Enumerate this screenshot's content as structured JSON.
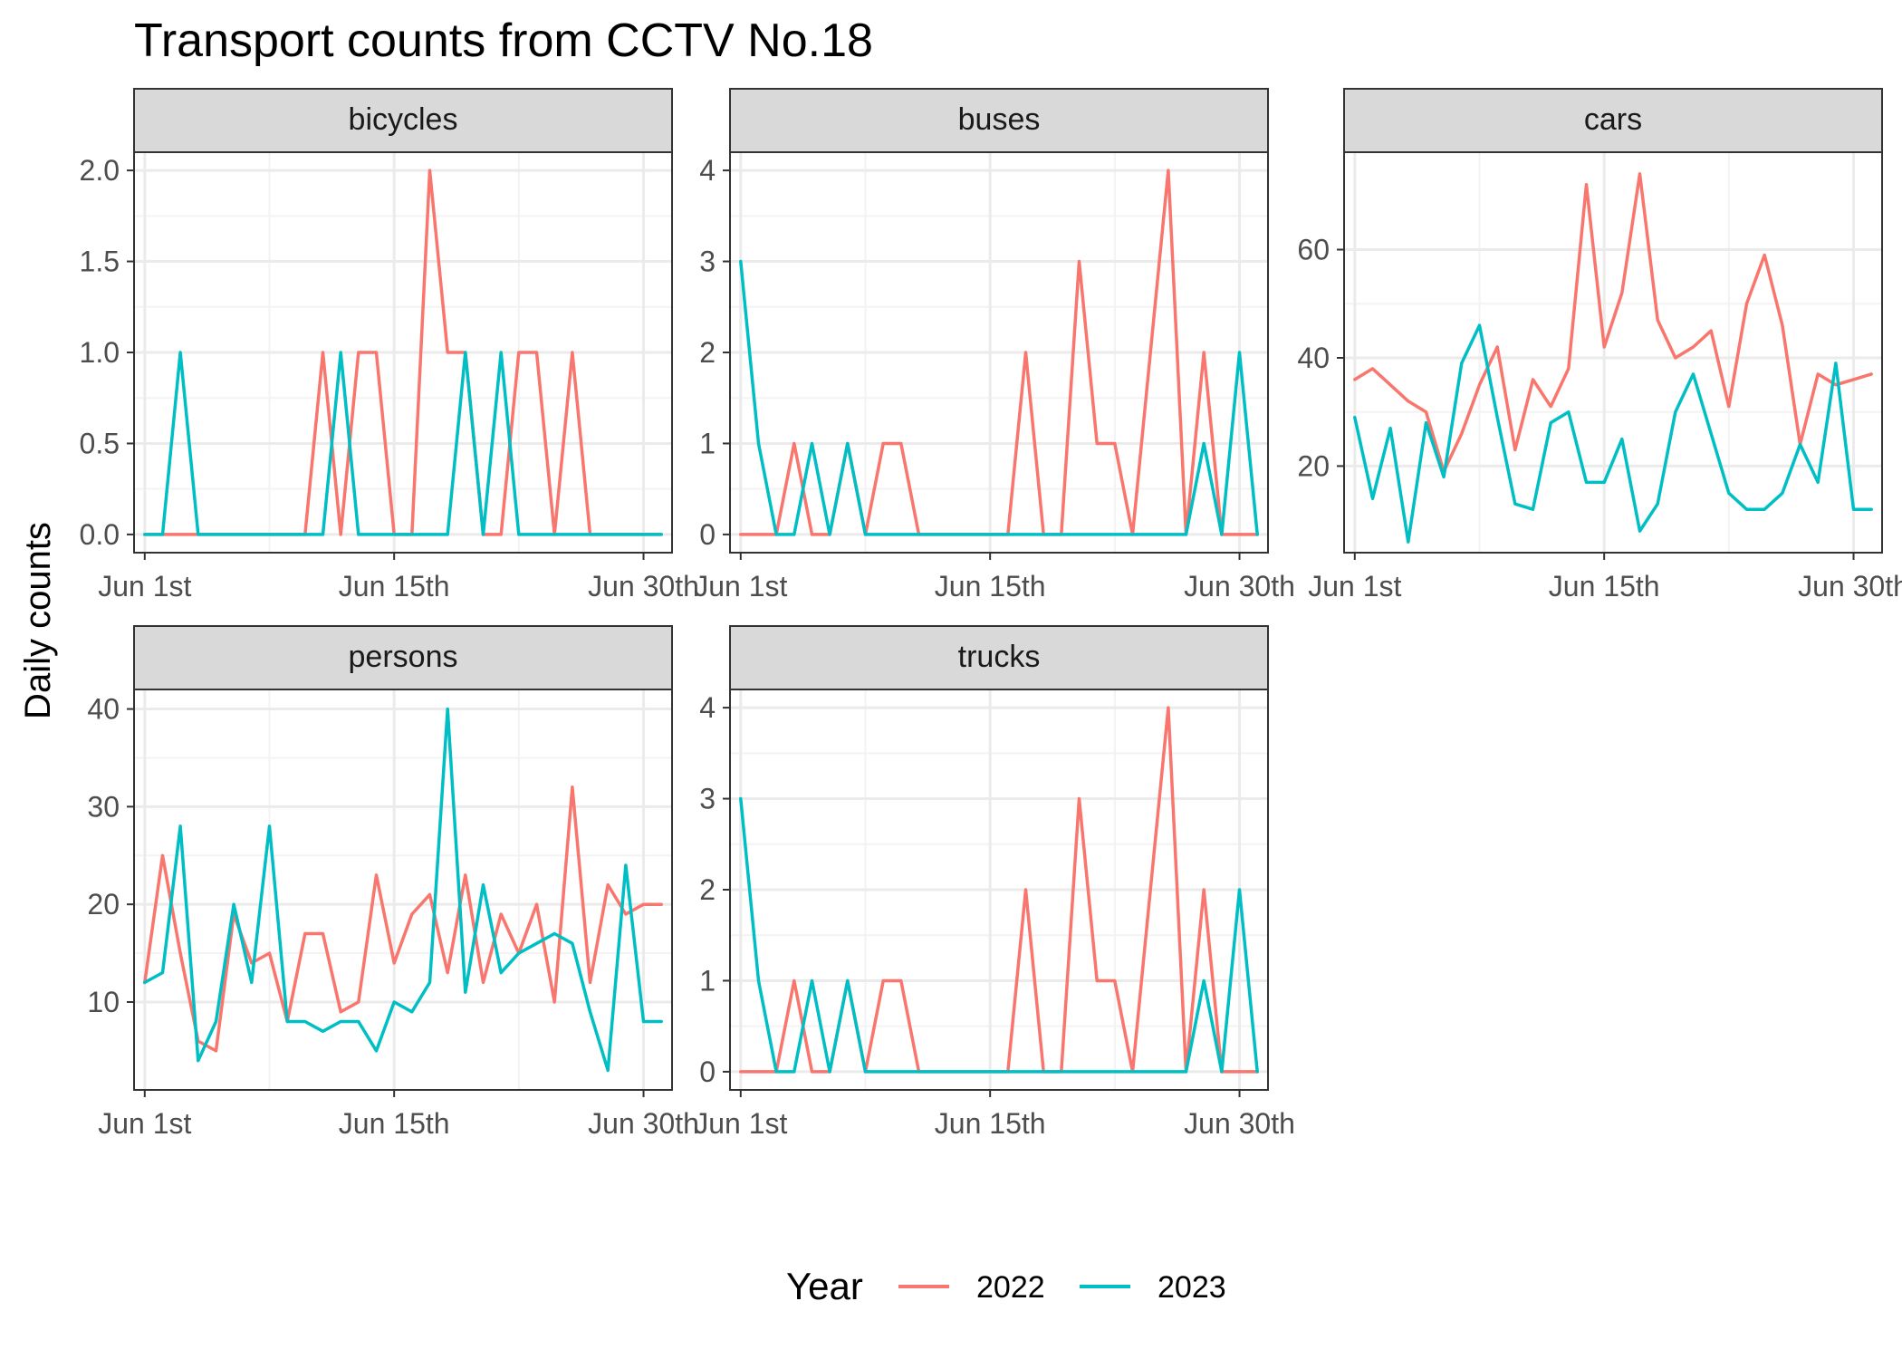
{
  "chart_data": {
    "type": "line",
    "title": "Transport counts from CCTV No.18",
    "xlabel": "",
    "ylabel": "Daily counts",
    "legend": {
      "title": "Year",
      "position": "bottom",
      "entries": [
        "2022",
        "2023"
      ]
    },
    "colors": {
      "2022": "#F8766D",
      "2023": "#00BFC4"
    },
    "grid": true,
    "x": [
      1,
      2,
      3,
      4,
      5,
      6,
      7,
      8,
      9,
      10,
      11,
      12,
      13,
      14,
      15,
      16,
      17,
      18,
      19,
      20,
      21,
      22,
      23,
      24,
      25,
      26,
      27,
      28,
      29,
      30
    ],
    "x_tick_values": [
      1,
      15,
      29
    ],
    "x_tick_labels": [
      "Jun 1st",
      "Jun 15th",
      "Jun 30th"
    ],
    "facets": [
      {
        "name": "bicycles",
        "ylim": [
          -0.1,
          2.1
        ],
        "y_ticks": [
          0,
          0.5,
          1,
          1.5,
          2
        ],
        "y_tick_labels": [
          "0.0",
          "0.5",
          "1.0",
          "1.5",
          "2.0"
        ],
        "series": [
          {
            "name": "2022",
            "values": [
              0,
              0,
              0,
              0,
              0,
              0,
              0,
              0,
              0,
              0,
              1,
              0,
              1,
              1,
              0,
              0,
              2,
              1,
              1,
              0,
              0,
              1,
              1,
              0,
              1,
              0,
              0,
              0,
              0,
              0
            ]
          },
          {
            "name": "2023",
            "values": [
              0,
              0,
              1,
              0,
              0,
              0,
              0,
              0,
              0,
              0,
              0,
              1,
              0,
              0,
              0,
              0,
              0,
              0,
              1,
              0,
              1,
              0,
              0,
              0,
              0,
              0,
              0,
              0,
              0,
              0
            ]
          }
        ]
      },
      {
        "name": "buses",
        "ylim": [
          -0.2,
          4.2
        ],
        "y_ticks": [
          0,
          1,
          2,
          3,
          4
        ],
        "y_tick_labels": [
          "0",
          "1",
          "2",
          "3",
          "4"
        ],
        "series": [
          {
            "name": "2022",
            "values": [
              0,
              0,
              0,
              1,
              0,
              0,
              1,
              0,
              1,
              1,
              0,
              0,
              0,
              0,
              0,
              0,
              2,
              0,
              0,
              3,
              1,
              1,
              0,
              2,
              4,
              0,
              2,
              0,
              0,
              0
            ]
          },
          {
            "name": "2023",
            "values": [
              3,
              1,
              0,
              0,
              1,
              0,
              1,
              0,
              0,
              0,
              0,
              0,
              0,
              0,
              0,
              0,
              0,
              0,
              0,
              0,
              0,
              0,
              0,
              0,
              0,
              0,
              1,
              0,
              2,
              0
            ]
          }
        ]
      },
      {
        "name": "cars",
        "ylim": [
          4,
          78
        ],
        "y_ticks": [
          20,
          40,
          60
        ],
        "y_tick_labels": [
          "20",
          "40",
          "60"
        ],
        "series": [
          {
            "name": "2022",
            "values": [
              36,
              38,
              35,
              32,
              30,
              19,
              26,
              35,
              42,
              23,
              36,
              31,
              38,
              72,
              42,
              52,
              74,
              47,
              40,
              42,
              45,
              31,
              50,
              59,
              46,
              24,
              37,
              35,
              36,
              37
            ]
          },
          {
            "name": "2023",
            "values": [
              29,
              14,
              27,
              6,
              28,
              18,
              39,
              46,
              29,
              13,
              12,
              28,
              30,
              17,
              17,
              25,
              8,
              13,
              30,
              37,
              26,
              15,
              12,
              12,
              15,
              24,
              17,
              39,
              12,
              12
            ]
          }
        ]
      },
      {
        "name": "persons",
        "ylim": [
          1,
          42
        ],
        "y_ticks": [
          10,
          20,
          30,
          40
        ],
        "y_tick_labels": [
          "10",
          "20",
          "30",
          "40"
        ],
        "series": [
          {
            "name": "2022",
            "values": [
              12,
              25,
              15,
              6,
              5,
              19,
              14,
              15,
              8,
              17,
              17,
              9,
              10,
              23,
              14,
              19,
              21,
              13,
              23,
              12,
              19,
              15,
              20,
              10,
              32,
              12,
              22,
              19,
              20,
              20
            ]
          },
          {
            "name": "2023",
            "values": [
              12,
              13,
              28,
              4,
              8,
              20,
              12,
              28,
              8,
              8,
              7,
              8,
              8,
              5,
              10,
              9,
              12,
              40,
              11,
              22,
              13,
              15,
              16,
              17,
              16,
              9,
              3,
              24,
              8,
              8
            ]
          }
        ]
      },
      {
        "name": "trucks",
        "ylim": [
          -0.2,
          4.2
        ],
        "y_ticks": [
          0,
          1,
          2,
          3,
          4
        ],
        "y_tick_labels": [
          "0",
          "1",
          "2",
          "3",
          "4"
        ],
        "series": [
          {
            "name": "2022",
            "values": [
              0,
              0,
              0,
              1,
              0,
              0,
              1,
              0,
              1,
              1,
              0,
              0,
              0,
              0,
              0,
              0,
              2,
              0,
              0,
              3,
              1,
              1,
              0,
              2,
              4,
              0,
              2,
              0,
              0,
              0
            ]
          },
          {
            "name": "2023",
            "values": [
              3,
              1,
              0,
              0,
              1,
              0,
              1,
              0,
              0,
              0,
              0,
              0,
              0,
              0,
              0,
              0,
              0,
              0,
              0,
              0,
              0,
              0,
              0,
              0,
              0,
              0,
              1,
              0,
              2,
              0
            ]
          }
        ]
      }
    ]
  }
}
